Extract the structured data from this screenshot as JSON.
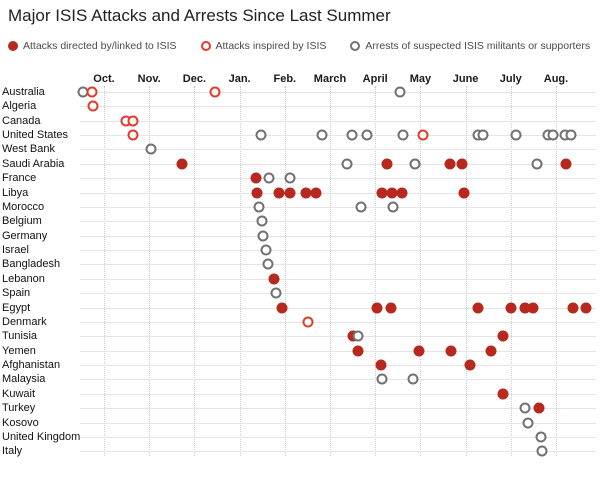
{
  "title": "Major ISIS Attacks and Arrests Since Last Summer",
  "colors": {
    "directed": "#b7291f",
    "inspired": "#e23b2a",
    "arrest": "#717171",
    "row_line": "#e4e4e4",
    "grid_line": "#cccccc"
  },
  "legend": [
    {
      "type": "directed",
      "label": "Attacks directed by/linked to ISIS"
    },
    {
      "type": "inspired",
      "label": "Attacks inspired by ISIS"
    },
    {
      "type": "arrest",
      "label": "Arrests of suspected ISIS militants or supporters"
    }
  ],
  "chart_data": {
    "type": "scatter",
    "title": "Major ISIS Attacks and Arrests Since Last Summer",
    "x_unit": "months since Oct. 1 (t=0 at Oct. gridline, fractional = day within month)",
    "grid": "vertical dotted month lines, horizontal light row lines",
    "legend_position": "top",
    "months": [
      {
        "label": "Oct.",
        "t": 0
      },
      {
        "label": "Nov.",
        "t": 1
      },
      {
        "label": "Dec.",
        "t": 2
      },
      {
        "label": "Jan.",
        "t": 3
      },
      {
        "label": "Feb.",
        "t": 4
      },
      {
        "label": "March",
        "t": 5
      },
      {
        "label": "April",
        "t": 6
      },
      {
        "label": "May",
        "t": 7
      },
      {
        "label": "June",
        "t": 8
      },
      {
        "label": "July",
        "t": 9
      },
      {
        "label": "Aug.",
        "t": 10
      }
    ],
    "rows": [
      {
        "country": "Australia",
        "dots": [
          {
            "t": -0.46,
            "type": "arrest"
          },
          {
            "t": -0.27,
            "type": "inspired"
          },
          {
            "t": 2.46,
            "type": "inspired"
          },
          {
            "t": 6.55,
            "type": "arrest"
          }
        ]
      },
      {
        "country": "Algeria",
        "dots": [
          {
            "t": -0.24,
            "type": "inspired"
          }
        ]
      },
      {
        "country": "Canada",
        "dots": [
          {
            "t": 0.49,
            "type": "inspired"
          },
          {
            "t": 0.64,
            "type": "inspired"
          }
        ]
      },
      {
        "country": "United States",
        "dots": [
          {
            "t": 0.64,
            "type": "inspired"
          },
          {
            "t": 3.47,
            "type": "arrest"
          },
          {
            "t": 4.82,
            "type": "arrest"
          },
          {
            "t": 5.49,
            "type": "arrest"
          },
          {
            "t": 5.82,
            "type": "arrest"
          },
          {
            "t": 6.62,
            "type": "arrest"
          },
          {
            "t": 7.06,
            "type": "inspired"
          },
          {
            "t": 8.27,
            "type": "arrest"
          },
          {
            "t": 8.39,
            "type": "arrest"
          },
          {
            "t": 9.12,
            "type": "arrest"
          },
          {
            "t": 9.82,
            "type": "arrest"
          },
          {
            "t": 9.93,
            "type": "arrest"
          },
          {
            "t": 10.2,
            "type": "arrest"
          },
          {
            "t": 10.33,
            "type": "arrest"
          }
        ]
      },
      {
        "country": "West Bank",
        "dots": [
          {
            "t": 1.04,
            "type": "arrest"
          }
        ]
      },
      {
        "country": "Saudi Arabia",
        "dots": [
          {
            "t": 1.73,
            "type": "directed"
          },
          {
            "t": 5.38,
            "type": "arrest"
          },
          {
            "t": 6.26,
            "type": "directed"
          },
          {
            "t": 6.88,
            "type": "arrest"
          },
          {
            "t": 7.66,
            "type": "directed"
          },
          {
            "t": 7.92,
            "type": "directed"
          },
          {
            "t": 9.58,
            "type": "arrest"
          },
          {
            "t": 10.22,
            "type": "directed"
          }
        ]
      },
      {
        "country": "France",
        "dots": [
          {
            "t": 3.36,
            "type": "directed"
          },
          {
            "t": 3.65,
            "type": "arrest"
          },
          {
            "t": 4.12,
            "type": "arrest"
          }
        ]
      },
      {
        "country": "Libya",
        "dots": [
          {
            "t": 3.39,
            "type": "directed"
          },
          {
            "t": 3.87,
            "type": "directed"
          },
          {
            "t": 4.12,
            "type": "directed"
          },
          {
            "t": 4.47,
            "type": "directed"
          },
          {
            "t": 4.69,
            "type": "directed"
          },
          {
            "t": 6.15,
            "type": "directed"
          },
          {
            "t": 6.37,
            "type": "directed"
          },
          {
            "t": 6.59,
            "type": "directed"
          },
          {
            "t": 7.97,
            "type": "directed"
          }
        ]
      },
      {
        "country": "Morocco",
        "dots": [
          {
            "t": 3.43,
            "type": "arrest"
          },
          {
            "t": 5.69,
            "type": "arrest"
          },
          {
            "t": 6.39,
            "type": "arrest"
          }
        ]
      },
      {
        "country": "Belgium",
        "dots": [
          {
            "t": 3.5,
            "type": "arrest"
          }
        ]
      },
      {
        "country": "Germany",
        "dots": [
          {
            "t": 3.52,
            "type": "arrest"
          }
        ]
      },
      {
        "country": "Israel",
        "dots": [
          {
            "t": 3.58,
            "type": "arrest"
          }
        ]
      },
      {
        "country": "Bangladesh",
        "dots": [
          {
            "t": 3.63,
            "type": "arrest"
          }
        ]
      },
      {
        "country": "Lebanon",
        "dots": [
          {
            "t": 3.76,
            "type": "directed"
          }
        ]
      },
      {
        "country": "Spain",
        "dots": [
          {
            "t": 3.81,
            "type": "arrest"
          }
        ]
      },
      {
        "country": "Egypt",
        "dots": [
          {
            "t": 3.94,
            "type": "directed"
          },
          {
            "t": 6.04,
            "type": "directed"
          },
          {
            "t": 6.35,
            "type": "directed"
          },
          {
            "t": 8.27,
            "type": "directed"
          },
          {
            "t": 9.0,
            "type": "directed"
          },
          {
            "t": 9.31,
            "type": "directed"
          },
          {
            "t": 9.49,
            "type": "directed"
          },
          {
            "t": 10.38,
            "type": "directed"
          },
          {
            "t": 10.66,
            "type": "directed"
          }
        ]
      },
      {
        "country": "Denmark",
        "dots": [
          {
            "t": 4.51,
            "type": "inspired"
          }
        ]
      },
      {
        "country": "Tunisia",
        "dots": [
          {
            "t": 5.51,
            "type": "directed"
          },
          {
            "t": 5.62,
            "type": "arrest"
          },
          {
            "t": 8.83,
            "type": "directed"
          }
        ]
      },
      {
        "country": "Yemen",
        "dots": [
          {
            "t": 5.62,
            "type": "directed"
          },
          {
            "t": 6.97,
            "type": "directed"
          },
          {
            "t": 7.68,
            "type": "directed"
          },
          {
            "t": 8.56,
            "type": "directed"
          }
        ]
      },
      {
        "country": "Afghanistan",
        "dots": [
          {
            "t": 6.13,
            "type": "directed"
          },
          {
            "t": 8.1,
            "type": "directed"
          }
        ]
      },
      {
        "country": "Malaysia",
        "dots": [
          {
            "t": 6.15,
            "type": "arrest"
          },
          {
            "t": 6.84,
            "type": "arrest"
          }
        ]
      },
      {
        "country": "Kuwait",
        "dots": [
          {
            "t": 8.83,
            "type": "directed"
          }
        ]
      },
      {
        "country": "Turkey",
        "dots": [
          {
            "t": 9.31,
            "type": "arrest"
          },
          {
            "t": 9.62,
            "type": "directed"
          }
        ]
      },
      {
        "country": "Kosovo",
        "dots": [
          {
            "t": 9.38,
            "type": "arrest"
          }
        ]
      },
      {
        "country": "United Kingdom",
        "dots": [
          {
            "t": 9.67,
            "type": "arrest"
          }
        ]
      },
      {
        "country": "Italy",
        "dots": [
          {
            "t": 9.69,
            "type": "arrest"
          }
        ]
      }
    ]
  }
}
